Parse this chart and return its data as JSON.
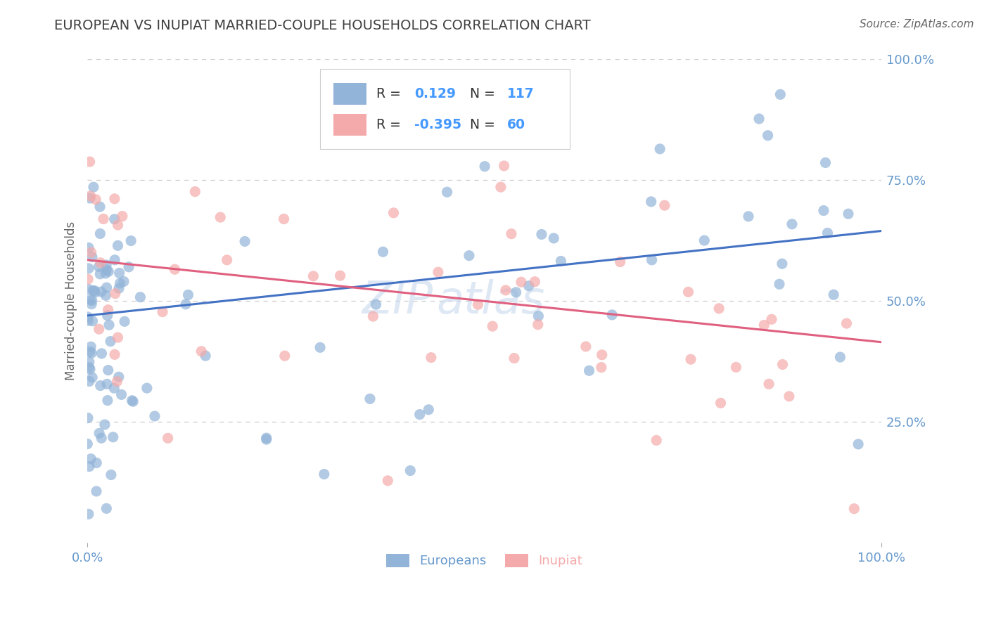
{
  "title": "EUROPEAN VS INUPIAT MARRIED-COUPLE HOUSEHOLDS CORRELATION CHART",
  "source": "Source: ZipAtlas.com",
  "ylabel": "Married-couple Households",
  "xlim": [
    0.0,
    1.0
  ],
  "ylim": [
    0.0,
    1.0
  ],
  "xtick_labels": [
    "0.0%",
    "100.0%"
  ],
  "ytick_labels": [
    "25.0%",
    "50.0%",
    "75.0%",
    "100.0%"
  ],
  "ytick_positions": [
    0.25,
    0.5,
    0.75,
    1.0
  ],
  "dashed_yticks": [
    0.25,
    0.5,
    0.75,
    1.0
  ],
  "european_R": 0.129,
  "european_N": 117,
  "inupiat_R": -0.395,
  "inupiat_N": 60,
  "european_color": "#92B4D8",
  "inupiat_color": "#F4AAAA",
  "european_line_color": "#4472C4",
  "inupiat_line_color": "#E06080",
  "watermark_part1": "ZIP",
  "watermark_part2": "atlas",
  "background_color": "#FFFFFF",
  "grid_color": "#CCCCCC",
  "title_color": "#404040",
  "axis_tick_color": "#6699CC",
  "legend_text_color": "#333333",
  "legend_value_color": "#4499FF",
  "euro_line_y0": 0.47,
  "euro_line_y1": 0.645,
  "inupiat_line_y0": 0.585,
  "inupiat_line_y1": 0.415
}
